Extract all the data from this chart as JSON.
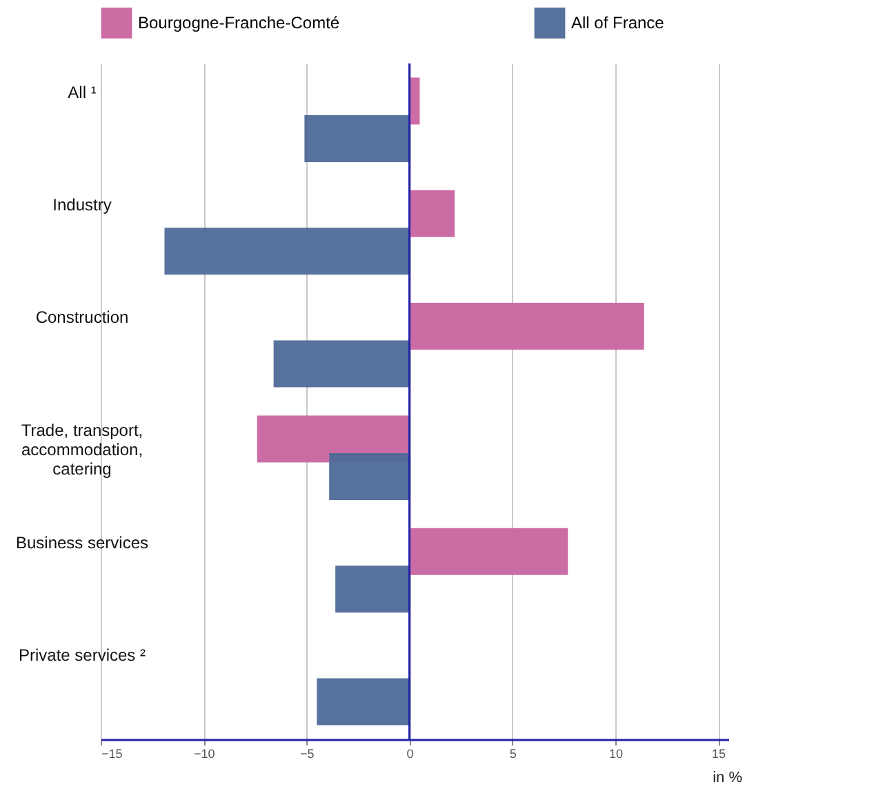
{
  "chart_data": {
    "type": "bar",
    "orientation": "horizontal",
    "categories": [
      "All ¹",
      "Industry",
      "Construction",
      "Trade, transport, accommodation, catering",
      "Business services",
      "Private services ²"
    ],
    "series": [
      {
        "name": "Bourgogne-Franche-Comté",
        "color": "#c8659f",
        "values": [
          0.5,
          2.2,
          11.4,
          -7.4,
          7.7,
          null
        ]
      },
      {
        "name": "All of France",
        "color": "#4e6a97",
        "values": [
          -5.1,
          -11.9,
          -6.6,
          -3.9,
          -3.6,
          -4.5
        ]
      }
    ],
    "xlim": [
      -15,
      15.5
    ],
    "xticks": [
      -15,
      -10,
      -5,
      0,
      5,
      10,
      15
    ],
    "grid": "x",
    "legend": "top",
    "ref_lines": [
      {
        "axis": "x",
        "value": 0,
        "color": "#2222aa"
      }
    ],
    "annotations": [
      "in %"
    ]
  }
}
